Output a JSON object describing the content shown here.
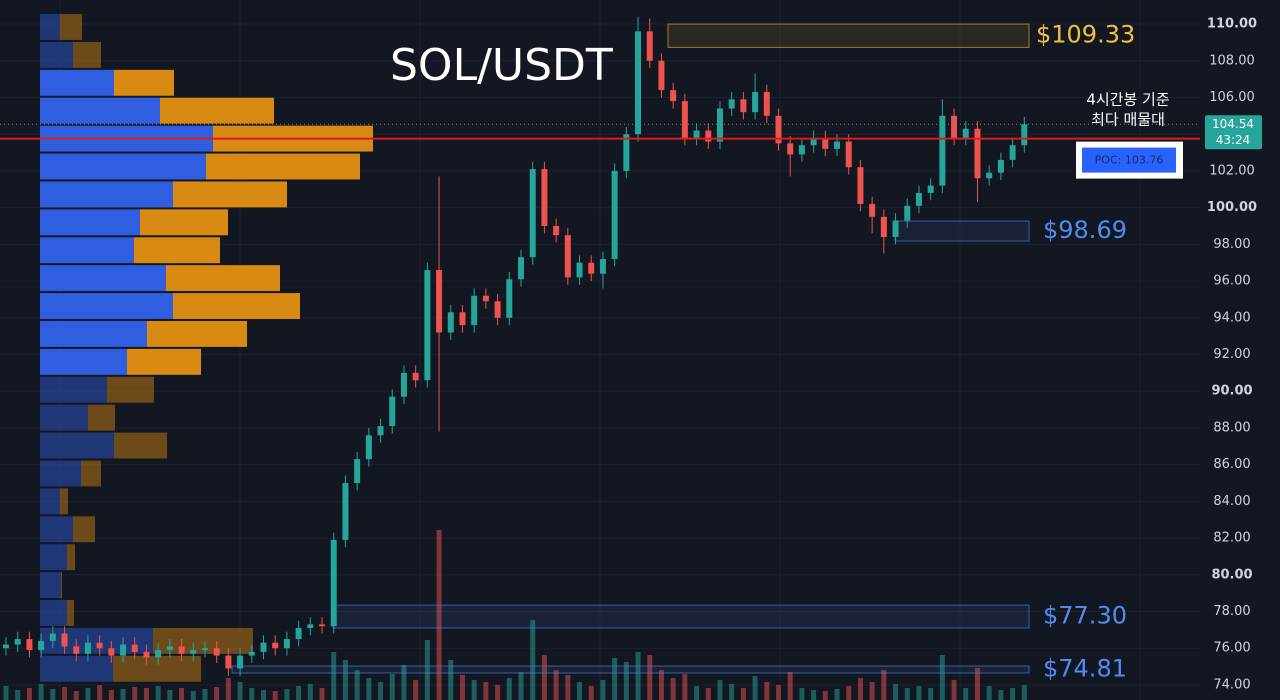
{
  "chart_data": {
    "type": "candlestick",
    "title": "SOL/USDT",
    "ylim": [
      73.18,
      111.31
    ],
    "yticks": [
      {
        "value": 74,
        "label": "74.00"
      },
      {
        "value": 76,
        "label": "76.00"
      },
      {
        "value": 78,
        "label": "78.00"
      },
      {
        "value": 80,
        "label": "80.00"
      },
      {
        "value": 82,
        "label": "82.00"
      },
      {
        "value": 84,
        "label": "84.00"
      },
      {
        "value": 86,
        "label": "86.00"
      },
      {
        "value": 88,
        "label": "88.00"
      },
      {
        "value": 90,
        "label": "90.00"
      },
      {
        "value": 92,
        "label": "92.00"
      },
      {
        "value": 94,
        "label": "94.00"
      },
      {
        "value": 96,
        "label": "96.00"
      },
      {
        "value": 98,
        "label": "98.00"
      },
      {
        "value": 100,
        "label": "100.00"
      },
      {
        "value": 102,
        "label": "102.00"
      },
      {
        "value": 104,
        "label": "104.00"
      },
      {
        "value": 106,
        "label": "106.00"
      },
      {
        "value": 108,
        "label": "108.00"
      },
      {
        "value": 110,
        "label": "110.00"
      }
    ],
    "grid": true,
    "up_color": "#26a69a",
    "down_color": "#ef5350",
    "open": [
      76.0,
      76.2,
      76.5,
      75.9,
      76.4,
      76.8,
      76.1,
      75.7,
      76.3,
      76.0,
      75.6,
      76.2,
      75.8,
      75.5,
      75.9,
      76.1,
      75.7,
      75.9,
      76.0,
      75.6,
      74.9,
      75.6,
      75.8,
      76.3,
      76.0,
      76.5,
      77.1,
      77.3,
      77.2,
      81.9,
      85.0,
      86.3,
      87.6,
      88.1,
      89.7,
      91.0,
      90.6,
      96.6,
      93.2,
      94.3,
      93.6,
      95.2,
      94.9,
      94.0,
      96.1,
      97.3,
      102.1,
      99.0,
      98.5,
      96.2,
      97.0,
      96.4,
      97.2,
      102.0,
      104.0,
      109.6,
      108.0,
      106.4,
      105.8,
      103.8,
      104.2,
      103.6,
      105.4,
      105.9,
      105.2,
      106.3,
      105.0,
      103.5,
      102.9,
      103.4,
      103.8,
      103.2,
      103.6,
      102.2,
      100.2,
      99.5,
      98.4,
      99.3,
      100.1,
      100.8,
      101.2,
      105.0,
      103.8,
      104.3,
      101.6,
      101.9,
      102.6,
      103.4
    ],
    "high": [
      76.6,
      76.9,
      76.9,
      76.8,
      77.2,
      77.2,
      76.5,
      76.7,
      76.7,
      76.4,
      76.6,
      76.6,
      76.2,
      76.3,
      76.5,
      76.5,
      76.3,
      76.4,
      76.4,
      76.0,
      76.0,
      76.2,
      76.7,
      76.7,
      76.9,
      77.5,
      77.7,
      77.7,
      82.3,
      85.4,
      86.7,
      88.0,
      88.5,
      90.1,
      91.4,
      91.4,
      97.0,
      101.7,
      94.7,
      94.7,
      95.6,
      95.6,
      95.3,
      96.5,
      97.7,
      102.5,
      102.5,
      99.4,
      98.9,
      97.4,
      97.4,
      97.6,
      102.4,
      104.4,
      110.4,
      110.3,
      108.4,
      106.8,
      106.2,
      104.6,
      104.6,
      105.8,
      106.3,
      106.3,
      107.3,
      106.7,
      105.4,
      103.9,
      103.8,
      104.2,
      104.2,
      104.0,
      104.0,
      102.6,
      100.6,
      99.9,
      99.7,
      100.5,
      101.2,
      101.6,
      105.9,
      105.4,
      104.7,
      104.7,
      102.3,
      103.0,
      103.8,
      104.94
    ],
    "low": [
      75.6,
      75.8,
      75.5,
      75.5,
      76.0,
      75.7,
      75.3,
      75.3,
      75.6,
      75.2,
      75.2,
      75.4,
      75.1,
      75.1,
      75.5,
      75.3,
      75.3,
      75.5,
      75.2,
      74.5,
      74.5,
      75.2,
      75.4,
      75.6,
      75.6,
      76.1,
      76.7,
      76.8,
      76.8,
      81.5,
      84.6,
      85.9,
      87.2,
      87.7,
      89.3,
      90.2,
      90.2,
      87.8,
      92.8,
      93.2,
      93.2,
      94.5,
      93.6,
      93.6,
      95.7,
      96.9,
      98.6,
      98.1,
      95.8,
      95.8,
      96.0,
      95.6,
      96.8,
      101.6,
      103.6,
      107.6,
      106.0,
      105.4,
      103.4,
      103.4,
      103.2,
      103.2,
      105.0,
      104.8,
      104.8,
      104.6,
      103.1,
      101.7,
      102.5,
      103.0,
      102.8,
      102.8,
      101.8,
      99.8,
      98.6,
      97.5,
      98.0,
      98.9,
      99.7,
      100.4,
      100.8,
      103.4,
      103.4,
      100.3,
      101.2,
      101.5,
      102.2,
      103.0
    ],
    "close": [
      76.2,
      76.5,
      75.9,
      76.4,
      76.8,
      76.1,
      75.7,
      76.3,
      76.0,
      75.6,
      76.2,
      75.8,
      75.5,
      75.9,
      76.1,
      75.7,
      75.9,
      76.0,
      75.6,
      74.9,
      75.6,
      75.8,
      76.3,
      76.0,
      76.5,
      77.1,
      77.3,
      77.2,
      81.9,
      85.0,
      86.3,
      87.6,
      88.1,
      89.7,
      91.0,
      90.6,
      96.6,
      93.2,
      94.3,
      93.6,
      95.2,
      94.9,
      94.0,
      96.1,
      97.3,
      102.1,
      99.0,
      98.5,
      96.2,
      97.0,
      96.4,
      97.2,
      102.0,
      104.0,
      109.6,
      108.0,
      106.4,
      105.8,
      103.8,
      104.2,
      103.6,
      105.4,
      105.9,
      105.2,
      106.3,
      105.0,
      103.5,
      102.9,
      103.4,
      103.8,
      103.2,
      103.6,
      102.2,
      100.2,
      99.5,
      98.4,
      99.3,
      100.1,
      100.8,
      101.2,
      105.0,
      103.8,
      104.3,
      101.6,
      101.9,
      102.6,
      103.4,
      104.54
    ],
    "volume": [
      14,
      10,
      12,
      16,
      11,
      13,
      9,
      12,
      15,
      10,
      11,
      13,
      12,
      14,
      10,
      12,
      9,
      11,
      13,
      22,
      18,
      12,
      10,
      9,
      11,
      14,
      16,
      12,
      48,
      40,
      30,
      22,
      18,
      26,
      35,
      20,
      60,
      170,
      40,
      25,
      20,
      18,
      15,
      22,
      28,
      80,
      45,
      30,
      25,
      18,
      14,
      20,
      42,
      38,
      48,
      45,
      30,
      22,
      26,
      14,
      12,
      20,
      16,
      12,
      24,
      18,
      15,
      28,
      12,
      10,
      9,
      11,
      14,
      22,
      18,
      30,
      16,
      12,
      14,
      12,
      45,
      20,
      12,
      32,
      14,
      10,
      12,
      15
    ],
    "volume_profile": {
      "bins": [
        110.6,
        109.08,
        107.56,
        106.04,
        104.52,
        103.0,
        101.48,
        99.96,
        98.44,
        96.92,
        95.4,
        93.88,
        92.36,
        90.84,
        89.32,
        87.8,
        86.28,
        84.76,
        83.24,
        81.72,
        80.2,
        78.68,
        77.16,
        75.64,
        74.12
      ],
      "buy": [
        20,
        33,
        74,
        120,
        173,
        166,
        133,
        100,
        94,
        126,
        133,
        107,
        87,
        67,
        48,
        74,
        41,
        20,
        33,
        27,
        21,
        27,
        113,
        73
      ],
      "sell": [
        22,
        28,
        60,
        114,
        160,
        154,
        114,
        88,
        86,
        114,
        127,
        100,
        74,
        47,
        27,
        53,
        20,
        8,
        22,
        8,
        1,
        7,
        100,
        88
      ],
      "buy_color": "#2f5fe0",
      "sell_color": "#d98a12",
      "value_area": [
        90.84,
        107.56
      ]
    },
    "poc": 103.76,
    "poc_label": "POC: 103.76",
    "annotation": [
      "4시간봉 기준",
      "최다 매물대"
    ],
    "last_price": 104.54,
    "countdown": "43:24",
    "zones": [
      {
        "label": "$109.33",
        "top": 110.0,
        "bottom": 108.73,
        "color": "#f0c040"
      },
      {
        "label": "$98.69",
        "top": 99.27,
        "bottom": 98.18,
        "color": "#4d8ef0"
      },
      {
        "label": "$77.30",
        "top": 78.35,
        "bottom": 77.1,
        "color": "#4d8ef0"
      },
      {
        "label": "$74.81",
        "top": 75.03,
        "bottom": 74.65,
        "color": "#4d8ef0"
      }
    ]
  }
}
